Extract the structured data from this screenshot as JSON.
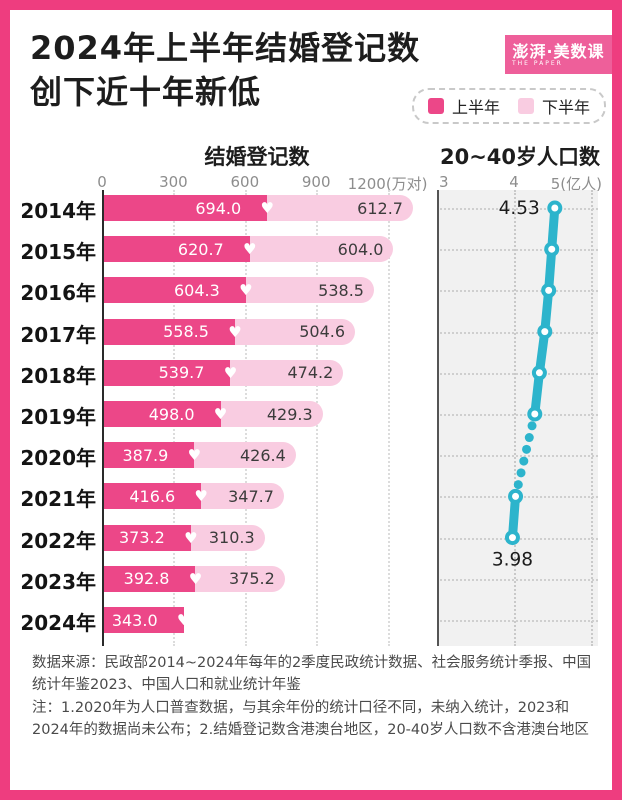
{
  "frame": {
    "border_color": "#ee3d7f"
  },
  "header": {
    "title_line1": "2024年上半年结婚登记数",
    "title_line2": "创下近十年新低",
    "logo_text": "澎湃·美数课",
    "logo_subtext": "THE PAPER",
    "logo_bg": "#ee5f9a",
    "legend": [
      {
        "label": "上半年",
        "color": "#ec4788"
      },
      {
        "label": "下半年",
        "color": "#f9cce1"
      }
    ]
  },
  "chart_data": [
    {
      "type": "bar",
      "stacked": true,
      "orientation": "horizontal",
      "title": "结婚登记数",
      "unit": "万对",
      "x_ticks": [
        "0",
        "300",
        "600",
        "900",
        "1200(万对)"
      ],
      "xlim": [
        0,
        1200
      ],
      "grid": "vertical-dotted",
      "categories": [
        "2014年",
        "2015年",
        "2016年",
        "2017年",
        "2018年",
        "2019年",
        "2020年",
        "2021年",
        "2022年",
        "2023年",
        "2024年"
      ],
      "series": [
        {
          "name": "上半年",
          "color": "#ec4788",
          "values": [
            694.0,
            620.7,
            604.3,
            558.5,
            539.7,
            498.0,
            387.9,
            416.6,
            373.2,
            392.8,
            343.0
          ]
        },
        {
          "name": "下半年",
          "color": "#f9cce1",
          "values": [
            612.7,
            604.0,
            538.5,
            504.6,
            474.2,
            429.3,
            426.4,
            347.7,
            310.3,
            375.2,
            null
          ]
        }
      ],
      "bar_divider_icon": "heart-icon"
    },
    {
      "type": "line",
      "title": "20~40岁人口数",
      "unit": "亿人",
      "x_ticks": [
        "3",
        "4",
        "5(亿人)"
      ],
      "xlim": [
        3,
        5
      ],
      "grid": "dotted",
      "line_color": "#2db4cc",
      "categories": [
        "2014年",
        "2015年",
        "2016年",
        "2017年",
        "2018年",
        "2019年",
        "2020年",
        "2021年",
        "2022年",
        "2023年",
        "2024年"
      ],
      "values": [
        4.53,
        4.49,
        4.45,
        4.4,
        4.33,
        4.27,
        null,
        4.02,
        3.98,
        null,
        null
      ],
      "point_labels": [
        {
          "index": 0,
          "text": "4.53",
          "position": "left"
        },
        {
          "index": 8,
          "text": "3.98",
          "position": "below"
        }
      ],
      "dotted_gap_between": [
        "2019年",
        "2021年"
      ]
    }
  ],
  "footer": {
    "source": "数据来源：民政部2014~2024年每年的2季度民政统计数据、社会服务统计季报、中国统计年鉴2023、中国人口和就业统计年鉴",
    "note": "注：1.2020年为人口普查数据，与其余年份的统计口径不同，未纳入统计，2023和2024年的数据尚未公布；2.结婚登记数含港澳台地区，20-40岁人口数不含港澳台地区"
  }
}
